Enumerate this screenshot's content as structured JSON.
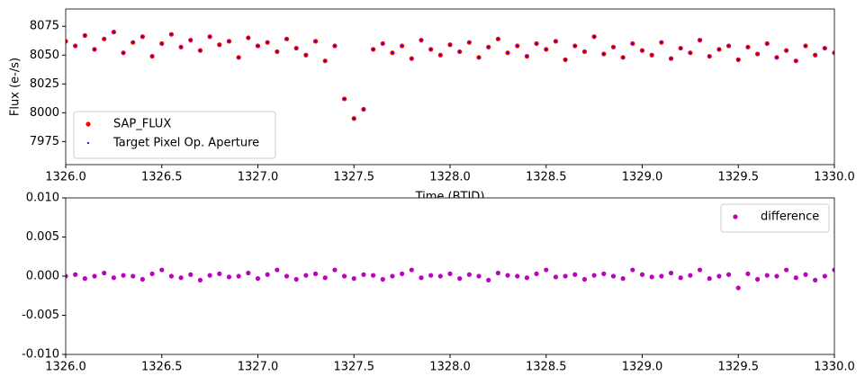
{
  "chart_data": [
    {
      "type": "scatter",
      "ylabel": "Flux (e-/s)",
      "xlabel": "Time (BTJD)",
      "x": [
        1326.0,
        1326.05,
        1326.1,
        1326.15,
        1326.2,
        1326.25,
        1326.3,
        1326.35,
        1326.4,
        1326.45,
        1326.5,
        1326.55,
        1326.6,
        1326.65,
        1326.7,
        1326.75,
        1326.8,
        1326.85,
        1326.9,
        1326.95,
        1327.0,
        1327.05,
        1327.1,
        1327.15,
        1327.2,
        1327.25,
        1327.3,
        1327.35,
        1327.4,
        1327.45,
        1327.5,
        1327.55,
        1327.6,
        1327.65,
        1327.7,
        1327.75,
        1327.8,
        1327.85,
        1327.9,
        1327.95,
        1328.0,
        1328.05,
        1328.1,
        1328.15,
        1328.2,
        1328.25,
        1328.3,
        1328.35,
        1328.4,
        1328.45,
        1328.5,
        1328.55,
        1328.6,
        1328.65,
        1328.7,
        1328.75,
        1328.8,
        1328.85,
        1328.9,
        1328.95,
        1329.0,
        1329.05,
        1329.1,
        1329.15,
        1329.2,
        1329.25,
        1329.3,
        1329.35,
        1329.4,
        1329.45,
        1329.5,
        1329.55,
        1329.6,
        1329.65,
        1329.7,
        1329.75,
        1329.8,
        1329.85,
        1329.9,
        1329.95,
        1330.0
      ],
      "series": [
        {
          "name": "SAP_FLUX",
          "color": "#ff0000",
          "values": [
            8062,
            8058,
            8067,
            8055,
            8064,
            8070,
            8052,
            8061,
            8066,
            8049,
            8060,
            8068,
            8057,
            8063,
            8054,
            8066,
            8059,
            8062,
            8048,
            8065,
            8058,
            8061,
            8053,
            8064,
            8056,
            8050,
            8062,
            8045,
            8058,
            8012,
            7995,
            8003,
            8055,
            8060,
            8052,
            8058,
            8047,
            8063,
            8055,
            8050,
            8059,
            8053,
            8061,
            8048,
            8057,
            8064,
            8052,
            8058,
            8049,
            8060,
            8055,
            8062,
            8046,
            8058,
            8053,
            8066,
            8051,
            8057,
            8048,
            8060,
            8054,
            8050,
            8061,
            8047,
            8056,
            8052,
            8063,
            8049,
            8055,
            8058,
            8046,
            8057,
            8051,
            8060,
            8048,
            8054,
            8045,
            8058,
            8050,
            8056,
            8052
          ]
        },
        {
          "name": "Target Pixel Op. Aperture",
          "color": "#0000ff",
          "values": [
            8062,
            8058,
            8067,
            8055,
            8064,
            8070,
            8052,
            8061,
            8066,
            8049,
            8060,
            8068,
            8057,
            8063,
            8054,
            8066,
            8059,
            8062,
            8048,
            8065,
            8058,
            8061,
            8053,
            8064,
            8056,
            8050,
            8062,
            8045,
            8058,
            8012,
            7995,
            8003,
            8055,
            8060,
            8052,
            8058,
            8047,
            8063,
            8055,
            8050,
            8059,
            8053,
            8061,
            8048,
            8057,
            8064,
            8052,
            8058,
            8049,
            8060,
            8055,
            8062,
            8046,
            8058,
            8053,
            8066,
            8051,
            8057,
            8048,
            8060,
            8054,
            8050,
            8061,
            8047,
            8056,
            8052,
            8063,
            8049,
            8055,
            8058,
            8046,
            8057,
            8051,
            8060,
            8048,
            8054,
            8045,
            8058,
            8050,
            8056,
            8052
          ]
        }
      ],
      "xlim": [
        1326,
        1330
      ],
      "xticks": [
        {
          "value": 1326,
          "label": "1326.0"
        },
        {
          "value": 1326.5,
          "label": "1326.5"
        },
        {
          "value": 1327,
          "label": "1327.0"
        },
        {
          "value": 1327.5,
          "label": "1327.5"
        },
        {
          "value": 1328,
          "label": "1328.0"
        },
        {
          "value": 1328.5,
          "label": "1328.5"
        },
        {
          "value": 1329,
          "label": "1329.0"
        },
        {
          "value": 1329.5,
          "label": "1329.5"
        },
        {
          "value": 1330,
          "label": "1330.0"
        }
      ],
      "ylim": [
        7955,
        8090
      ],
      "yticks": [
        7975,
        8000,
        8025,
        8050,
        8075
      ],
      "legend": "lower left"
    },
    {
      "type": "scatter",
      "x": [
        1326.0,
        1326.05,
        1326.1,
        1326.15,
        1326.2,
        1326.25,
        1326.3,
        1326.35,
        1326.4,
        1326.45,
        1326.5,
        1326.55,
        1326.6,
        1326.65,
        1326.7,
        1326.75,
        1326.8,
        1326.85,
        1326.9,
        1326.95,
        1327.0,
        1327.05,
        1327.1,
        1327.15,
        1327.2,
        1327.25,
        1327.3,
        1327.35,
        1327.4,
        1327.45,
        1327.5,
        1327.55,
        1327.6,
        1327.65,
        1327.7,
        1327.75,
        1327.8,
        1327.85,
        1327.9,
        1327.95,
        1328.0,
        1328.05,
        1328.1,
        1328.15,
        1328.2,
        1328.25,
        1328.3,
        1328.35,
        1328.4,
        1328.45,
        1328.5,
        1328.55,
        1328.6,
        1328.65,
        1328.7,
        1328.75,
        1328.8,
        1328.85,
        1328.9,
        1328.95,
        1329.0,
        1329.05,
        1329.1,
        1329.15,
        1329.2,
        1329.25,
        1329.3,
        1329.35,
        1329.4,
        1329.45,
        1329.5,
        1329.55,
        1329.6,
        1329.65,
        1329.7,
        1329.75,
        1329.8,
        1329.85,
        1329.9,
        1329.95,
        1330.0
      ],
      "series": [
        {
          "name": "difference",
          "color": "#bf00bf",
          "values": [
            0,
            0.0002,
            -0.0003,
            0,
            0.0004,
            -0.0002,
            0.0001,
            0,
            -0.0004,
            0.0003,
            0.0008,
            0,
            -0.0002,
            0.0002,
            -0.0005,
            0.0001,
            0.0003,
            -0.0001,
            0,
            0.0004,
            -0.0003,
            0.0002,
            0.0008,
            0,
            -0.0004,
            0.0001,
            0.0003,
            -0.0002,
            0.0008,
            0,
            -0.0003,
            0.0002,
            0.0001,
            -0.0004,
            0,
            0.0003,
            0.0008,
            -0.0002,
            0.0001,
            0,
            0.0003,
            -0.0003,
            0.0002,
            0,
            -0.0005,
            0.0004,
            0.0001,
            0,
            -0.0002,
            0.0003,
            0.0008,
            -0.0001,
            0,
            0.0002,
            -0.0004,
            0.0001,
            0.0003,
            0,
            -0.0003,
            0.0008,
            0.0002,
            -0.0001,
            0,
            0.0004,
            -0.0002,
            0.0001,
            0.0008,
            -0.0003,
            0,
            0.0002,
            -0.0015,
            0.0003,
            -0.0004,
            0.0001,
            0,
            0.0008,
            -0.0002,
            0.0002,
            -0.0005,
            0,
            0.0008
          ]
        }
      ],
      "xlim": [
        1326,
        1330
      ],
      "xticks": [
        {
          "value": 1326,
          "label": "1326.0"
        },
        {
          "value": 1326.5,
          "label": "1326.5"
        },
        {
          "value": 1327,
          "label": "1327.0"
        },
        {
          "value": 1327.5,
          "label": "1327.5"
        },
        {
          "value": 1328,
          "label": "1328.0"
        },
        {
          "value": 1328.5,
          "label": "1328.5"
        },
        {
          "value": 1329,
          "label": "1329.0"
        },
        {
          "value": 1329.5,
          "label": "1329.5"
        },
        {
          "value": 1330,
          "label": "1330.0"
        }
      ],
      "ylim": [
        -0.01,
        0.01
      ],
      "yticks": [
        {
          "value": -0.01,
          "label": "-0.010"
        },
        {
          "value": -0.005,
          "label": "-0.005"
        },
        {
          "value": 0,
          "label": "0.000"
        },
        {
          "value": 0.005,
          "label": "0.005"
        },
        {
          "value": 0.01,
          "label": "0.010"
        }
      ],
      "legend": "upper right"
    }
  ]
}
